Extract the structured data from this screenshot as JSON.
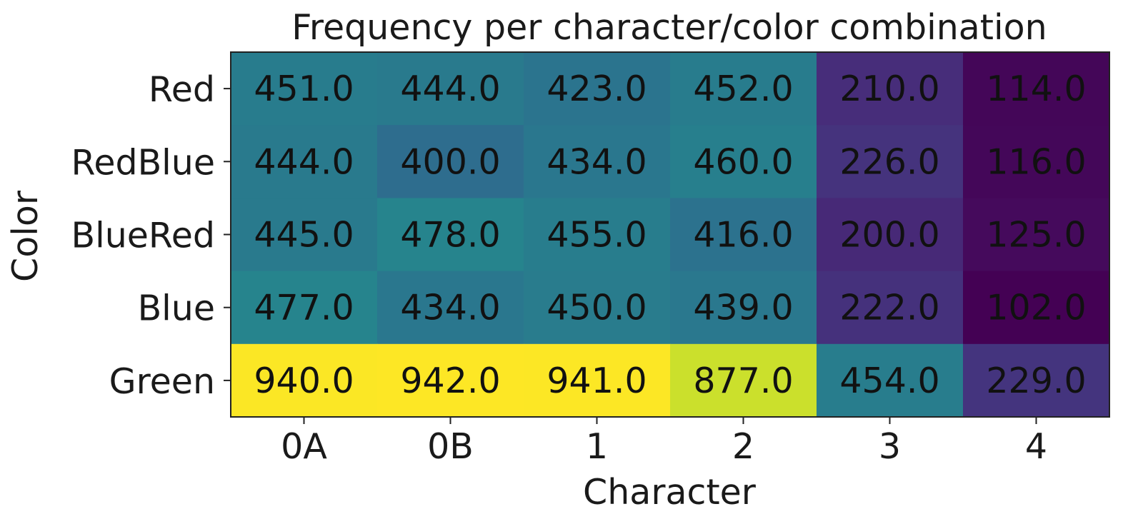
{
  "chart_data": {
    "type": "heatmap",
    "title": "Frequency per character/color combination",
    "xlabel": "Character",
    "ylabel": "Color",
    "x_categories": [
      "0A",
      "0B",
      "1",
      "2",
      "3",
      "4"
    ],
    "y_categories": [
      "Red",
      "RedBlue",
      "BlueRed",
      "Blue",
      "Green"
    ],
    "values": [
      [
        451.0,
        444.0,
        423.0,
        452.0,
        210.0,
        114.0
      ],
      [
        444.0,
        400.0,
        434.0,
        460.0,
        226.0,
        116.0
      ],
      [
        445.0,
        478.0,
        455.0,
        416.0,
        200.0,
        125.0
      ],
      [
        477.0,
        434.0,
        450.0,
        439.0,
        222.0,
        102.0
      ],
      [
        940.0,
        942.0,
        941.0,
        877.0,
        454.0,
        229.0
      ]
    ],
    "value_format": "1 decimal",
    "colormap": "viridis",
    "color_range": [
      102.0,
      942.0
    ],
    "grid": false,
    "legend": "none"
  }
}
